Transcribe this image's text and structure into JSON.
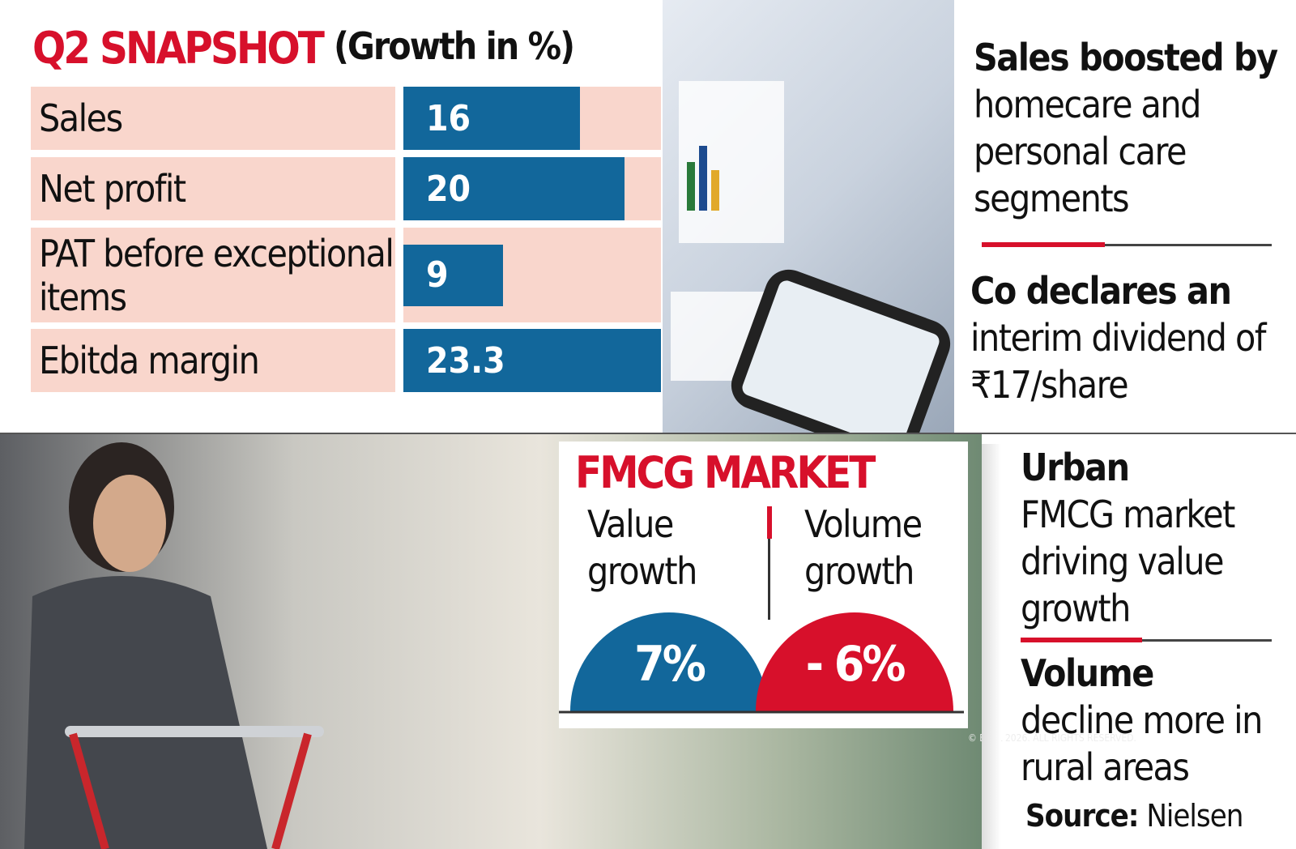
{
  "chart_data": {
    "type": "bar",
    "title": "Q2 SNAPSHOT",
    "subtitle": "(Growth in %)",
    "categories": [
      "Sales",
      "Net profit",
      "PAT before exceptional items",
      "Ebitda margin"
    ],
    "values": [
      16,
      20,
      9,
      23.3
    ],
    "color": "#12679b"
  },
  "notes_top": [
    {
      "bold": "Sales boosted by",
      "text": "homecare and personal care segments"
    },
    {
      "bold": "Co declares an",
      "text": "interim dividend of ₹17/share"
    }
  ],
  "fmcg": {
    "title": "FMCG MARKET",
    "labels": [
      "Value growth",
      "Volume growth"
    ],
    "values": [
      7,
      -6
    ],
    "value_labels": [
      "7%",
      "- 6%"
    ],
    "colors": [
      "#12679b",
      "#d7102b"
    ]
  },
  "notes_bottom": [
    {
      "bold": "Urban",
      "text": "FMCG market driving value growth"
    },
    {
      "bold": "Volume",
      "text": "decline more in rural areas"
    }
  ],
  "source": {
    "label": "Source:",
    "text": "Nielsen"
  },
  "copyright": "© BCCL 2026. ALL RIGHTS RESERVED."
}
